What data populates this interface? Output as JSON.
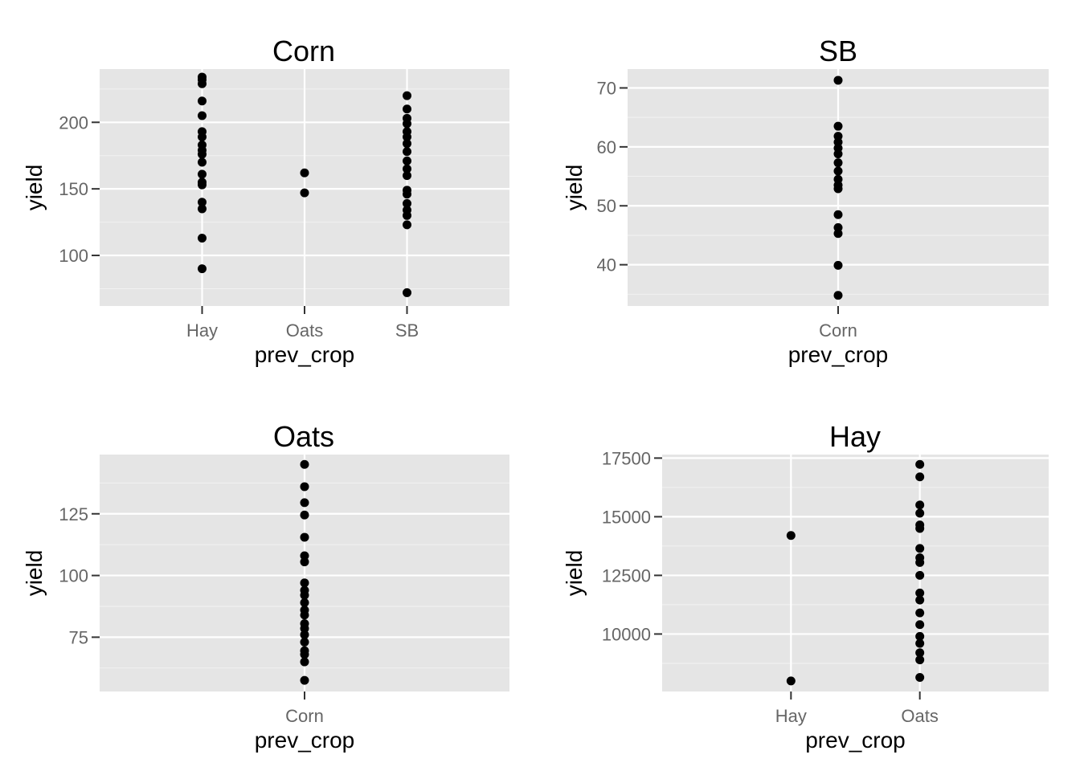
{
  "chart_data": [
    {
      "type": "scatter",
      "title": "Corn",
      "xlabel": "prev_crop",
      "ylabel": "yield",
      "categories": [
        "Hay",
        "Oats",
        "SB"
      ],
      "ylim": [
        62,
        240
      ],
      "y_ticks": [
        100,
        150,
        200
      ],
      "grid": true,
      "points": [
        {
          "x": "Hay",
          "y": 234
        },
        {
          "x": "Hay",
          "y": 232
        },
        {
          "x": "Hay",
          "y": 229
        },
        {
          "x": "Hay",
          "y": 216
        },
        {
          "x": "Hay",
          "y": 205
        },
        {
          "x": "Hay",
          "y": 193
        },
        {
          "x": "Hay",
          "y": 189
        },
        {
          "x": "Hay",
          "y": 183
        },
        {
          "x": "Hay",
          "y": 179
        },
        {
          "x": "Hay",
          "y": 176
        },
        {
          "x": "Hay",
          "y": 170
        },
        {
          "x": "Hay",
          "y": 161
        },
        {
          "x": "Hay",
          "y": 155
        },
        {
          "x": "Hay",
          "y": 153
        },
        {
          "x": "Hay",
          "y": 140
        },
        {
          "x": "Hay",
          "y": 135
        },
        {
          "x": "Hay",
          "y": 113
        },
        {
          "x": "Hay",
          "y": 90
        },
        {
          "x": "Oats",
          "y": 162
        },
        {
          "x": "Oats",
          "y": 147
        },
        {
          "x": "SB",
          "y": 220
        },
        {
          "x": "SB",
          "y": 210
        },
        {
          "x": "SB",
          "y": 203
        },
        {
          "x": "SB",
          "y": 199
        },
        {
          "x": "SB",
          "y": 193
        },
        {
          "x": "SB",
          "y": 189
        },
        {
          "x": "SB",
          "y": 184
        },
        {
          "x": "SB",
          "y": 178
        },
        {
          "x": "SB",
          "y": 171
        },
        {
          "x": "SB",
          "y": 165
        },
        {
          "x": "SB",
          "y": 160
        },
        {
          "x": "SB",
          "y": 149
        },
        {
          "x": "SB",
          "y": 146
        },
        {
          "x": "SB",
          "y": 139
        },
        {
          "x": "SB",
          "y": 134
        },
        {
          "x": "SB",
          "y": 130
        },
        {
          "x": "SB",
          "y": 123
        },
        {
          "x": "SB",
          "y": 72
        }
      ]
    },
    {
      "type": "scatter",
      "title": "SB",
      "xlabel": "prev_crop",
      "ylabel": "yield",
      "categories": [
        "Corn"
      ],
      "ylim": [
        33,
        73.2
      ],
      "y_ticks": [
        40,
        50,
        60,
        70
      ],
      "grid": true,
      "points": [
        {
          "x": "Corn",
          "y": 71.3
        },
        {
          "x": "Corn",
          "y": 63.5
        },
        {
          "x": "Corn",
          "y": 61.8
        },
        {
          "x": "Corn",
          "y": 60.8
        },
        {
          "x": "Corn",
          "y": 59.8
        },
        {
          "x": "Corn",
          "y": 58.8
        },
        {
          "x": "Corn",
          "y": 57.3
        },
        {
          "x": "Corn",
          "y": 55.9
        },
        {
          "x": "Corn",
          "y": 54.5
        },
        {
          "x": "Corn",
          "y": 53.5
        },
        {
          "x": "Corn",
          "y": 52.9
        },
        {
          "x": "Corn",
          "y": 48.5
        },
        {
          "x": "Corn",
          "y": 46.3
        },
        {
          "x": "Corn",
          "y": 45.3
        },
        {
          "x": "Corn",
          "y": 39.9
        },
        {
          "x": "Corn",
          "y": 34.8
        }
      ]
    },
    {
      "type": "scatter",
      "title": "Oats",
      "xlabel": "prev_crop",
      "ylabel": "yield",
      "categories": [
        "Corn"
      ],
      "ylim": [
        53,
        149
      ],
      "y_ticks": [
        75,
        100,
        125
      ],
      "grid": true,
      "points": [
        {
          "x": "Corn",
          "y": 145
        },
        {
          "x": "Corn",
          "y": 136
        },
        {
          "x": "Corn",
          "y": 129.5
        },
        {
          "x": "Corn",
          "y": 124.5
        },
        {
          "x": "Corn",
          "y": 115.5
        },
        {
          "x": "Corn",
          "y": 108
        },
        {
          "x": "Corn",
          "y": 105.5
        },
        {
          "x": "Corn",
          "y": 97
        },
        {
          "x": "Corn",
          "y": 94
        },
        {
          "x": "Corn",
          "y": 92
        },
        {
          "x": "Corn",
          "y": 89
        },
        {
          "x": "Corn",
          "y": 86
        },
        {
          "x": "Corn",
          "y": 84
        },
        {
          "x": "Corn",
          "y": 80.5
        },
        {
          "x": "Corn",
          "y": 78.5
        },
        {
          "x": "Corn",
          "y": 76
        },
        {
          "x": "Corn",
          "y": 73
        },
        {
          "x": "Corn",
          "y": 69.5
        },
        {
          "x": "Corn",
          "y": 68
        },
        {
          "x": "Corn",
          "y": 65
        },
        {
          "x": "Corn",
          "y": 57.5
        }
      ]
    },
    {
      "type": "scatter",
      "title": "Hay",
      "xlabel": "prev_crop",
      "ylabel": "yield",
      "categories": [
        "Hay",
        "Oats"
      ],
      "ylim": [
        7550,
        17650
      ],
      "y_ticks": [
        10000,
        12500,
        15000,
        17500
      ],
      "grid": true,
      "points": [
        {
          "x": "Hay",
          "y": 14200
        },
        {
          "x": "Hay",
          "y": 8000
        },
        {
          "x": "Oats",
          "y": 17230
        },
        {
          "x": "Oats",
          "y": 16700
        },
        {
          "x": "Oats",
          "y": 15500
        },
        {
          "x": "Oats",
          "y": 15150
        },
        {
          "x": "Oats",
          "y": 14650
        },
        {
          "x": "Oats",
          "y": 14500
        },
        {
          "x": "Oats",
          "y": 13650
        },
        {
          "x": "Oats",
          "y": 13250
        },
        {
          "x": "Oats",
          "y": 13050
        },
        {
          "x": "Oats",
          "y": 12500
        },
        {
          "x": "Oats",
          "y": 11750
        },
        {
          "x": "Oats",
          "y": 11450
        },
        {
          "x": "Oats",
          "y": 10900
        },
        {
          "x": "Oats",
          "y": 10400
        },
        {
          "x": "Oats",
          "y": 9900
        },
        {
          "x": "Oats",
          "y": 9600
        },
        {
          "x": "Oats",
          "y": 9200
        },
        {
          "x": "Oats",
          "y": 8900
        },
        {
          "x": "Oats",
          "y": 8150
        }
      ]
    }
  ]
}
